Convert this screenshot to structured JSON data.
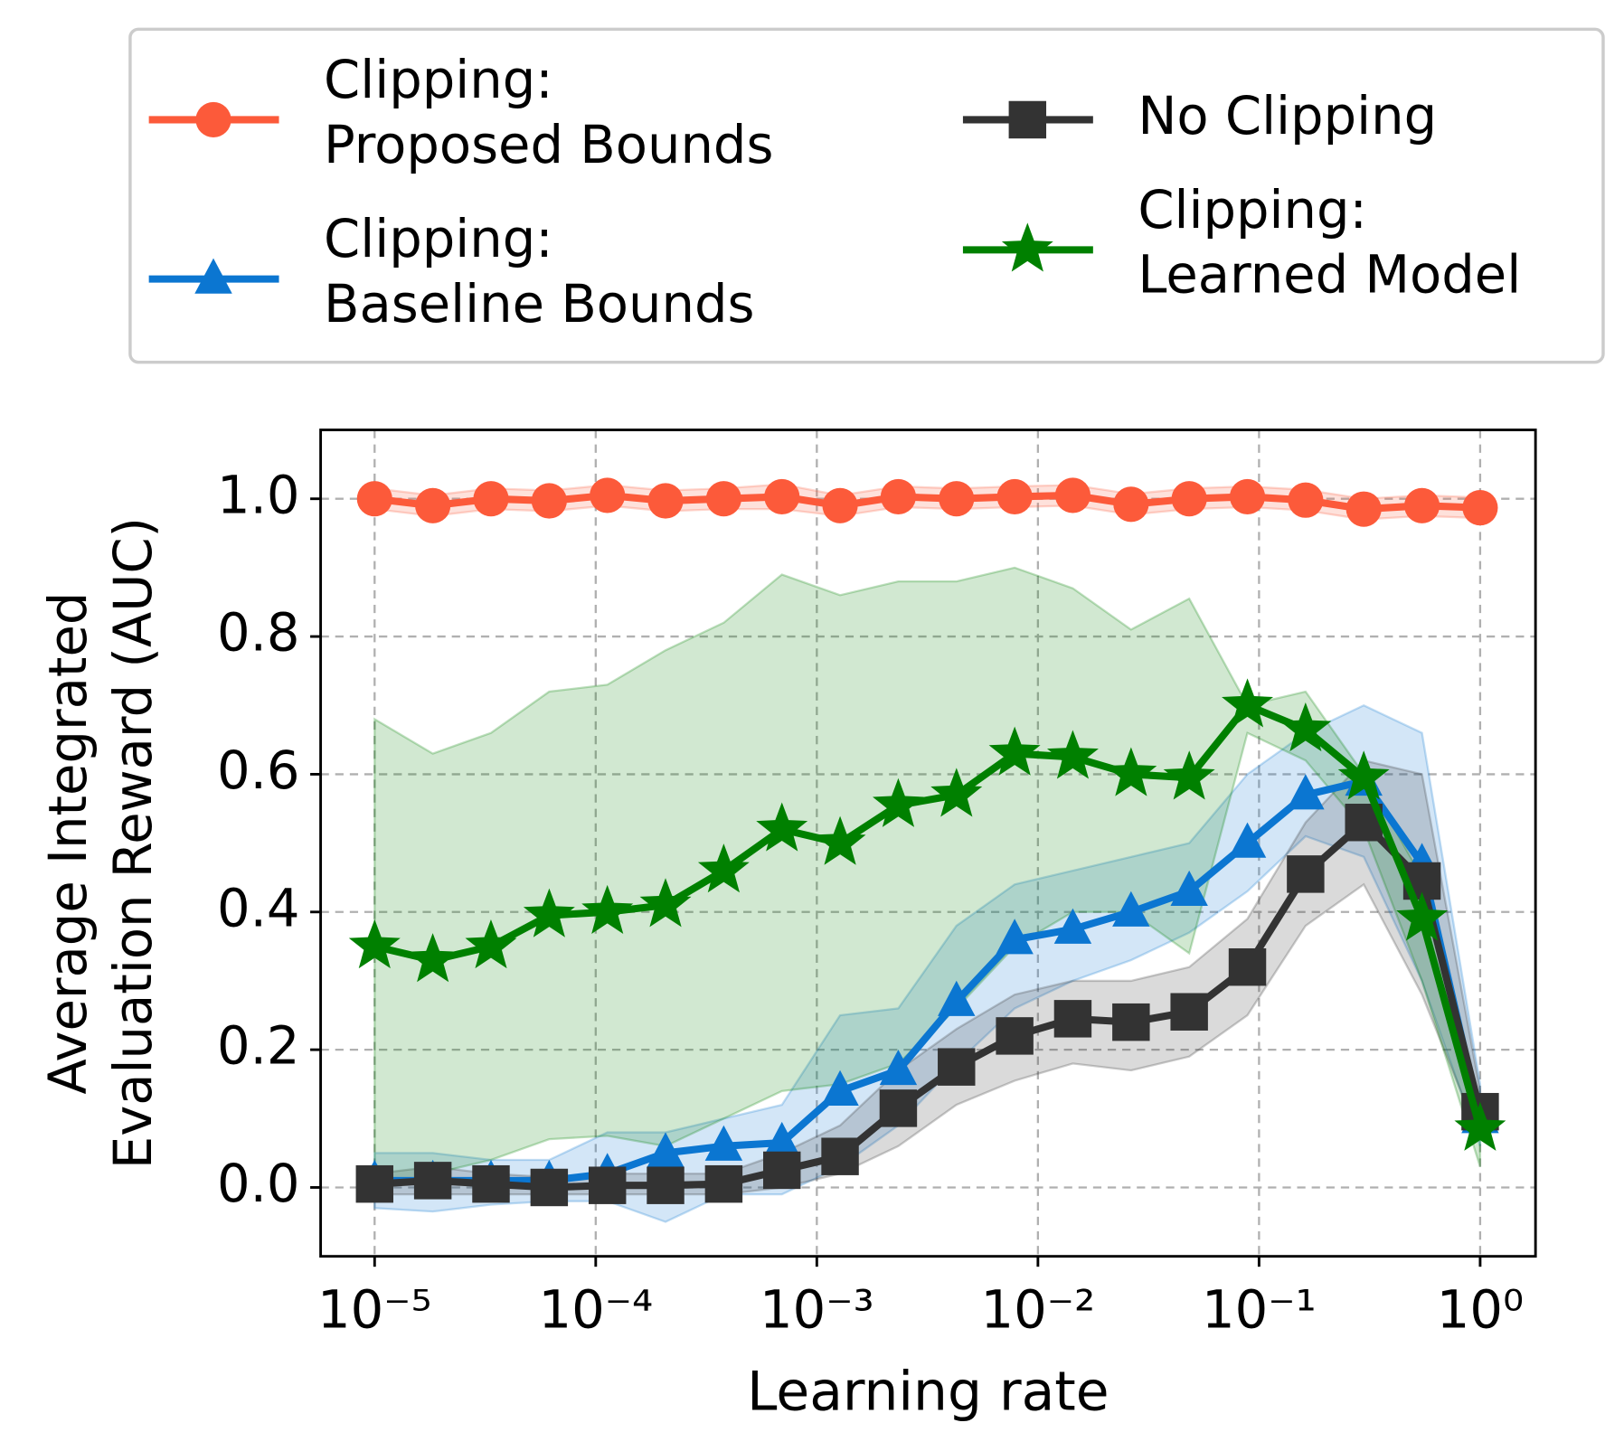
{
  "chart_data": {
    "type": "line",
    "x_label": "Learning rate",
    "y_label": "Average Integrated\nEvaluation Reward (AUC)",
    "x": [
      1e-05,
      1.833e-05,
      3.36e-05,
      6.16e-05,
      0.0001129,
      0.0002069,
      0.0003793,
      0.0006952,
      0.001274,
      0.002336,
      0.004281,
      0.007848,
      0.01438,
      0.02637,
      0.04833,
      0.0886,
      0.1624,
      0.2976,
      0.5456,
      1
    ],
    "xlim": [
      5.7e-06,
      1.78
    ],
    "log_x": true,
    "xticks": [
      {
        "value": 1e-05,
        "label": "10⁻⁵"
      },
      {
        "value": 0.0001,
        "label": "10⁻⁴"
      },
      {
        "value": 0.001,
        "label": "10⁻³"
      },
      {
        "value": 0.01,
        "label": "10⁻²"
      },
      {
        "value": 0.1,
        "label": "10⁻¹"
      },
      {
        "value": 1,
        "label": "10⁰"
      }
    ],
    "ylim": [
      -0.1,
      1.1
    ],
    "yticks": [
      {
        "value": 0,
        "label": "0.0"
      },
      {
        "value": 0.2,
        "label": "0.2"
      },
      {
        "value": 0.4,
        "label": "0.4"
      },
      {
        "value": 0.6,
        "label": "0.6"
      },
      {
        "value": 0.8,
        "label": "0.8"
      },
      {
        "value": 1,
        "label": "1.0"
      }
    ],
    "grid": true,
    "legend_position": "top",
    "series": [
      {
        "name": "Clipping:\nProposed Bounds",
        "color": "#fc5a3a",
        "marker": "o",
        "values": [
          1.0,
          0.99,
          1.0,
          0.997,
          1.005,
          0.997,
          1.0,
          1.003,
          0.99,
          1.003,
          1.0,
          1.003,
          1.005,
          0.992,
          1.0,
          1.003,
          0.998,
          0.985,
          0.99,
          0.987
        ],
        "lower": [
          0.985,
          0.975,
          0.985,
          0.982,
          0.99,
          0.982,
          0.985,
          0.985,
          0.975,
          0.988,
          0.985,
          0.988,
          0.99,
          0.977,
          0.985,
          0.988,
          0.983,
          0.97,
          0.975,
          0.972
        ],
        "upper": [
          1.015,
          1.005,
          1.015,
          1.012,
          1.02,
          1.012,
          1.015,
          1.021,
          1.005,
          1.018,
          1.015,
          1.018,
          1.02,
          1.007,
          1.015,
          1.018,
          1.013,
          1.0,
          1.005,
          1.002
        ]
      },
      {
        "name": "Clipping:\nBaseline Bounds",
        "color": "#0b76d1",
        "marker": "^",
        "values": [
          0.01,
          0.01,
          0.01,
          0.01,
          0.02,
          0.05,
          0.06,
          0.065,
          0.14,
          0.17,
          0.27,
          0.36,
          0.375,
          0.4,
          0.43,
          0.5,
          0.57,
          0.59,
          0.47,
          0.1
        ],
        "lower": [
          -0.03,
          -0.035,
          -0.025,
          -0.02,
          -0.02,
          -0.05,
          -0.01,
          -0.01,
          0.03,
          0.09,
          0.18,
          0.26,
          0.3,
          0.33,
          0.37,
          0.43,
          0.51,
          0.48,
          0.3,
          0.06
        ],
        "upper": [
          0.05,
          0.05,
          0.04,
          0.04,
          0.08,
          0.08,
          0.1,
          0.12,
          0.25,
          0.26,
          0.38,
          0.44,
          0.46,
          0.48,
          0.5,
          0.6,
          0.66,
          0.7,
          0.66,
          0.15
        ]
      },
      {
        "name": "No Clipping",
        "color": "#333333",
        "marker": "s",
        "values": [
          0.005,
          0.01,
          0.005,
          0.0,
          0.003,
          0.003,
          0.005,
          0.025,
          0.045,
          0.115,
          0.175,
          0.22,
          0.245,
          0.24,
          0.255,
          0.32,
          0.455,
          0.53,
          0.445,
          0.11
        ],
        "lower": [
          -0.01,
          -0.01,
          -0.01,
          -0.01,
          -0.01,
          -0.01,
          -0.01,
          0.0,
          0.02,
          0.06,
          0.12,
          0.155,
          0.18,
          0.17,
          0.19,
          0.25,
          0.38,
          0.44,
          0.28,
          0.07
        ],
        "upper": [
          0.02,
          0.03,
          0.02,
          0.015,
          0.02,
          0.02,
          0.02,
          0.05,
          0.09,
          0.17,
          0.23,
          0.28,
          0.3,
          0.3,
          0.32,
          0.39,
          0.53,
          0.62,
          0.6,
          0.14
        ]
      },
      {
        "name": "Clipping:\nLearned Model",
        "color": "#008000",
        "marker": "*",
        "values": [
          0.35,
          0.33,
          0.35,
          0.395,
          0.4,
          0.41,
          0.46,
          0.52,
          0.5,
          0.555,
          0.57,
          0.63,
          0.625,
          0.6,
          0.595,
          0.7,
          0.665,
          0.595,
          0.39,
          0.085
        ],
        "lower": [
          0.0,
          0.02,
          0.04,
          0.07,
          0.075,
          0.06,
          0.1,
          0.14,
          0.15,
          0.18,
          0.26,
          0.35,
          0.4,
          0.4,
          0.34,
          0.66,
          0.62,
          0.52,
          0.3,
          0.03
        ],
        "upper": [
          0.68,
          0.63,
          0.66,
          0.72,
          0.73,
          0.78,
          0.82,
          0.89,
          0.86,
          0.88,
          0.88,
          0.9,
          0.87,
          0.81,
          0.855,
          0.7,
          0.72,
          0.6,
          0.45,
          0.12
        ]
      }
    ]
  }
}
